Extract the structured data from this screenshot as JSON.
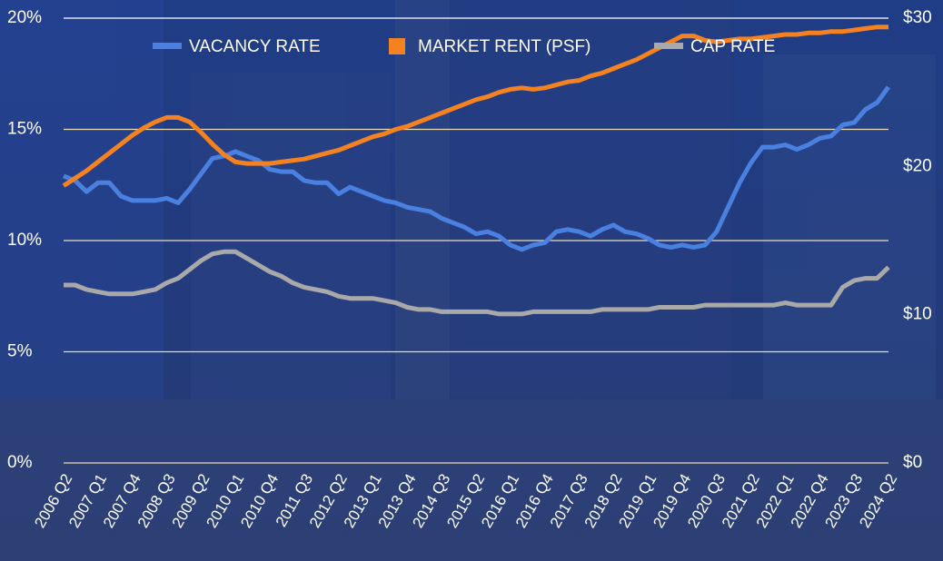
{
  "chart_data": {
    "type": "line",
    "categories": [
      "2006 Q2",
      null,
      null,
      "2007 Q1",
      null,
      null,
      "2007 Q4",
      null,
      null,
      "2008 Q3",
      null,
      null,
      "2009 Q2",
      null,
      null,
      "2010 Q1",
      null,
      null,
      "2010 Q4",
      null,
      null,
      "2011 Q3",
      null,
      null,
      "2012 Q2",
      null,
      null,
      "2013 Q1",
      null,
      null,
      "2013 Q4",
      null,
      null,
      "2014 Q3",
      null,
      null,
      "2015 Q2",
      null,
      null,
      "2016 Q1",
      null,
      null,
      "2016 Q4",
      null,
      null,
      "2017 Q3",
      null,
      null,
      "2018 Q2",
      null,
      null,
      "2019 Q1",
      null,
      null,
      "2019 Q4",
      null,
      null,
      "2020 Q3",
      null,
      null,
      "2021 Q2",
      null,
      null,
      "2022 Q1",
      null,
      null,
      "2022 Q4",
      null,
      null,
      "2023 Q3",
      null,
      null,
      "2024 Q2"
    ],
    "series": [
      {
        "name": "VACANCY RATE",
        "color": "#4a80e0",
        "values": [
          12.9,
          12.7,
          12.2,
          12.6,
          12.6,
          12.0,
          11.8,
          11.8,
          11.8,
          11.9,
          11.7,
          12.3,
          13.0,
          13.7,
          13.8,
          14.0,
          13.8,
          13.6,
          13.2,
          13.1,
          13.1,
          12.7,
          12.6,
          12.6,
          12.1,
          12.4,
          12.2,
          12.0,
          11.8,
          11.7,
          11.5,
          11.4,
          11.3,
          11.0,
          10.8,
          10.6,
          10.3,
          10.4,
          10.2,
          9.8,
          9.6,
          9.8,
          9.9,
          10.4,
          10.5,
          10.4,
          10.2,
          10.5,
          10.7,
          10.4,
          10.3,
          10.1,
          9.8,
          9.7,
          9.8,
          9.7,
          9.8,
          10.4,
          11.5,
          12.6,
          13.5,
          14.2,
          14.2,
          14.3,
          14.1,
          14.3,
          14.6,
          14.7,
          15.2,
          15.3,
          15.9,
          16.2,
          16.9
        ]
      },
      {
        "name": "MARKET RENT (PSF)",
        "color": "#f58220",
        "axis": "y2",
        "values": [
          18.7,
          19.2,
          19.7,
          20.3,
          20.9,
          21.5,
          22.1,
          22.6,
          23.0,
          23.3,
          23.3,
          23.0,
          22.3,
          21.5,
          20.8,
          20.3,
          20.2,
          20.2,
          20.2,
          20.3,
          20.4,
          20.5,
          20.7,
          20.9,
          21.1,
          21.4,
          21.7,
          22.0,
          22.2,
          22.5,
          22.7,
          23.0,
          23.3,
          23.6,
          23.9,
          24.2,
          24.5,
          24.7,
          25.0,
          25.2,
          25.3,
          25.2,
          25.3,
          25.5,
          25.7,
          25.8,
          26.1,
          26.3,
          26.6,
          26.9,
          27.2,
          27.6,
          28.0,
          28.4,
          28.8,
          28.8,
          28.5,
          28.4,
          28.5,
          28.6,
          28.6,
          28.7,
          28.8,
          28.9,
          28.9,
          29.0,
          29.0,
          29.1,
          29.1,
          29.2,
          29.3,
          29.4,
          29.4
        ]
      },
      {
        "name": "CAP RATE",
        "color": "#a9a9a9",
        "values": [
          8.0,
          8.0,
          7.8,
          7.7,
          7.6,
          7.6,
          7.6,
          7.7,
          7.8,
          8.1,
          8.3,
          8.7,
          9.1,
          9.4,
          9.5,
          9.5,
          9.2,
          8.9,
          8.6,
          8.4,
          8.1,
          7.9,
          7.8,
          7.7,
          7.5,
          7.4,
          7.4,
          7.4,
          7.3,
          7.2,
          7.0,
          6.9,
          6.9,
          6.8,
          6.8,
          6.8,
          6.8,
          6.8,
          6.7,
          6.7,
          6.7,
          6.8,
          6.8,
          6.8,
          6.8,
          6.8,
          6.8,
          6.9,
          6.9,
          6.9,
          6.9,
          6.9,
          7.0,
          7.0,
          7.0,
          7.0,
          7.1,
          7.1,
          7.1,
          7.1,
          7.1,
          7.1,
          7.1,
          7.2,
          7.1,
          7.1,
          7.1,
          7.1,
          7.9,
          8.2,
          8.3,
          8.3,
          8.8
        ]
      }
    ],
    "ylim": [
      0,
      20
    ],
    "yticks": [
      {
        "value": 0,
        "label": "0%"
      },
      {
        "value": 5,
        "label": "5%"
      },
      {
        "value": 10,
        "label": "10%"
      },
      {
        "value": 15,
        "label": "15%"
      },
      {
        "value": 20,
        "label": "20%"
      }
    ],
    "y2lim": [
      0,
      30
    ],
    "y2ticks": [
      {
        "value": 0,
        "label": "$0"
      },
      {
        "value": 10,
        "label": "$10"
      },
      {
        "value": 20,
        "label": "$20"
      },
      {
        "value": 30,
        "label": "$30"
      }
    ],
    "grid": true
  }
}
